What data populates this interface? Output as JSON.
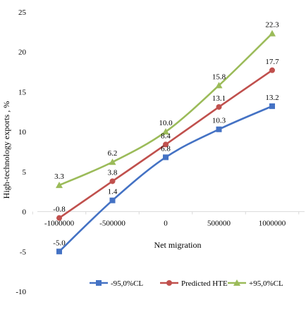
{
  "chart_data": {
    "type": "line",
    "title": "",
    "xlabel": "Net migration",
    "ylabel": "High-technology exports , %",
    "x": [
      -1000000,
      -500000,
      0,
      500000,
      1000000
    ],
    "x_tick_labels": [
      "-1000000",
      "-500000",
      "0",
      "500000",
      "1000000"
    ],
    "ylim": [
      -10,
      25
    ],
    "y_ticks": [
      -10,
      -5,
      0,
      5,
      10,
      15,
      20,
      25
    ],
    "grid": false,
    "legend_position": "bottom",
    "series": [
      {
        "name": "-95,0%CL",
        "color": "#4472C4",
        "marker": "square",
        "values": [
          -5.0,
          1.4,
          6.8,
          10.3,
          13.2
        ],
        "labels": [
          "-5.0",
          "1.4",
          "6.8",
          "10.3",
          "13.2"
        ]
      },
      {
        "name": "Predicted HTE",
        "color": "#C0504D",
        "marker": "circle",
        "values": [
          -0.8,
          3.8,
          8.4,
          13.1,
          17.7
        ],
        "labels": [
          "-0.8",
          "3.8",
          "8.4",
          "13.1",
          "17.7"
        ]
      },
      {
        "name": "+95,0%CL",
        "color": "#9BBB59",
        "marker": "triangle",
        "values": [
          3.3,
          6.2,
          10.0,
          15.8,
          22.3
        ],
        "labels": [
          "3.3",
          "6.2",
          "10.0",
          "15.8",
          "22.3"
        ]
      }
    ]
  }
}
